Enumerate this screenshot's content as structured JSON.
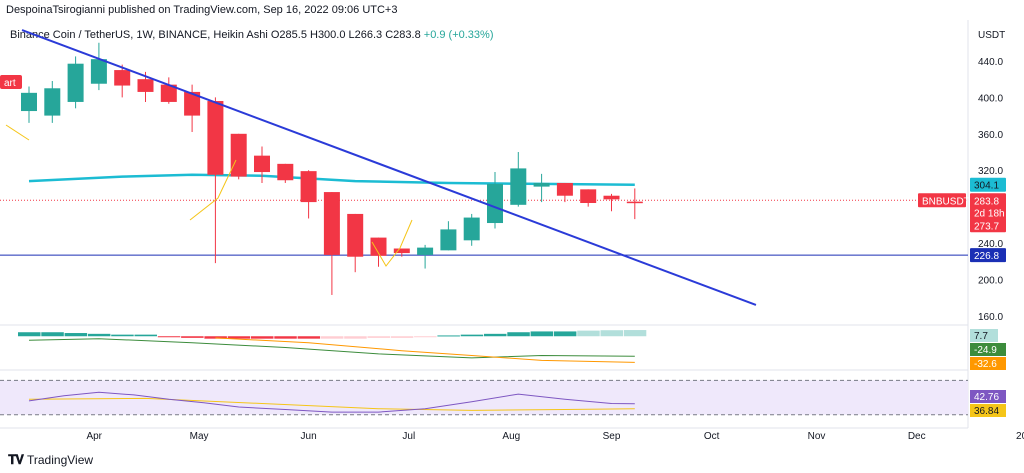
{
  "header": {
    "published_line": "DespoinaTsirogianni published on TradingView.com, Sep 16, 2022 09:06 UTC+3"
  },
  "footer": {
    "brand": "TradingView",
    "logo_icon": "tradingview-logo-icon"
  },
  "colors": {
    "up": "#26a69a",
    "down": "#f23645",
    "trendline": "#2b3bd8",
    "ma": "#1cbcd3",
    "support": "#1a2fb5",
    "macd_line": "#3c8c3c",
    "signal_line": "#ff9800",
    "rsi": "#7e57c2",
    "rsi_ma": "#f5c518",
    "rsi_band": "#efe8fb"
  },
  "chart_data": [
    {
      "type": "candlestick",
      "symbol_info": {
        "name": "Binance Coin / TetherUS, 1W, BINANCE, Heikin Ashi",
        "open": "O285.5",
        "high": "H300.0",
        "low": "L266.3",
        "close": "C283.8",
        "change": "+0.9 (+0.33%)"
      },
      "y_unit": "USDT",
      "ylim": [
        150,
        485
      ],
      "y_ticks": [
        "440.0",
        "400.0",
        "360.0",
        "320.0",
        "240.0",
        "200.0",
        "160.0"
      ],
      "y_tick_values": [
        440,
        400,
        360,
        320,
        240,
        200,
        160
      ],
      "x_ticks": [
        "Apr",
        "May",
        "Jun",
        "Jul",
        "Aug",
        "Sep",
        "Oct",
        "Nov",
        "Dec",
        "20"
      ],
      "x_tick_weeks": [
        2.8,
        7.3,
        12.0,
        16.3,
        20.7,
        25.0,
        29.3,
        33.8,
        38.1,
        42.6
      ],
      "candles": [
        {
          "w": 0,
          "o": 385,
          "h": 412,
          "l": 372,
          "c": 405
        },
        {
          "w": 1,
          "o": 380,
          "h": 418,
          "l": 372,
          "c": 410
        },
        {
          "w": 2,
          "o": 395,
          "h": 445,
          "l": 388,
          "c": 437
        },
        {
          "w": 3,
          "o": 415,
          "h": 460,
          "l": 408,
          "c": 442
        },
        {
          "w": 4,
          "o": 430,
          "h": 436,
          "l": 400,
          "c": 413
        },
        {
          "w": 5,
          "o": 420,
          "h": 428,
          "l": 395,
          "c": 406
        },
        {
          "w": 6,
          "o": 414,
          "h": 422,
          "l": 393,
          "c": 395
        },
        {
          "w": 7,
          "o": 406,
          "h": 414,
          "l": 362,
          "c": 380
        },
        {
          "w": 8,
          "o": 396,
          "h": 400,
          "l": 218,
          "c": 315
        },
        {
          "w": 9,
          "o": 360,
          "h": 360,
          "l": 310,
          "c": 313
        },
        {
          "w": 10,
          "o": 336,
          "h": 346,
          "l": 306,
          "c": 318
        },
        {
          "w": 11,
          "o": 327,
          "h": 327,
          "l": 306,
          "c": 309
        },
        {
          "w": 12,
          "o": 319,
          "h": 320,
          "l": 267,
          "c": 285
        },
        {
          "w": 13,
          "o": 296,
          "h": 296,
          "l": 183,
          "c": 227
        },
        {
          "w": 14,
          "o": 272,
          "h": 272,
          "l": 208,
          "c": 225
        },
        {
          "w": 15,
          "o": 246,
          "h": 246,
          "l": 214,
          "c": 226
        },
        {
          "w": 16,
          "o": 234,
          "h": 234,
          "l": 225,
          "c": 229
        },
        {
          "w": 17,
          "o": 227,
          "h": 238,
          "l": 212,
          "c": 235
        },
        {
          "w": 18,
          "o": 232,
          "h": 264,
          "l": 232,
          "c": 255
        },
        {
          "w": 19,
          "o": 243,
          "h": 272,
          "l": 237,
          "c": 268
        },
        {
          "w": 20,
          "o": 262,
          "h": 318,
          "l": 256,
          "c": 305
        },
        {
          "w": 21,
          "o": 282,
          "h": 340,
          "l": 280,
          "c": 322
        },
        {
          "w": 22,
          "o": 302,
          "h": 316,
          "l": 285,
          "c": 306
        },
        {
          "w": 23,
          "o": 306,
          "h": 306,
          "l": 285,
          "c": 292
        },
        {
          "w": 24,
          "o": 299,
          "h": 299,
          "l": 280,
          "c": 284
        },
        {
          "w": 25,
          "o": 292,
          "h": 294,
          "l": 275,
          "c": 288
        },
        {
          "w": 26,
          "o": 285.5,
          "h": 300,
          "l": 266.3,
          "c": 283.8
        }
      ],
      "moving_average": [
        {
          "w": 0,
          "v": 308
        },
        {
          "w": 4,
          "v": 313
        },
        {
          "w": 7,
          "v": 315
        },
        {
          "w": 10,
          "v": 314
        },
        {
          "w": 14,
          "v": 308
        },
        {
          "w": 18,
          "v": 306
        },
        {
          "w": 22,
          "v": 305
        },
        {
          "w": 26,
          "v": 304.1
        }
      ],
      "trendline": [
        {
          "w": -0.3,
          "v": 474
        },
        {
          "w": 31.2,
          "v": 172
        }
      ],
      "support_level": 226.8,
      "price_tags": [
        {
          "label": "304.1",
          "value": 304.1,
          "style": "ma"
        },
        {
          "label": "BNBUSDT",
          "value": 287,
          "style": "symbol"
        },
        {
          "label": "283.8",
          "value": 287,
          "style": "price"
        },
        {
          "label": "2d 18h",
          "value": 273.5,
          "style": "countdown"
        },
        {
          "label": "273.7",
          "value": 259.5,
          "style": "price"
        },
        {
          "label": "226.8",
          "value": 226.8,
          "style": "support"
        }
      ],
      "cut_label": "art"
    },
    {
      "type": "bar",
      "name": "MACD histogram",
      "tag_value": "7.7",
      "histogram": [
        5,
        5,
        4,
        3,
        2,
        2,
        -1,
        -2,
        -3,
        -3,
        -3,
        -3,
        -3,
        -3,
        -3,
        -2,
        -2,
        -1,
        1,
        2,
        3,
        5,
        6,
        6,
        7,
        7.5,
        7.7
      ],
      "macd_line": [
        {
          "w": 0,
          "v": -5
        },
        {
          "w": 3,
          "v": -3
        },
        {
          "w": 7,
          "v": -8
        },
        {
          "w": 11,
          "v": -14
        },
        {
          "w": 15,
          "v": -22
        },
        {
          "w": 19,
          "v": -27
        },
        {
          "w": 22,
          "v": -24
        },
        {
          "w": 26,
          "v": -24.9
        }
      ],
      "signal_line": [
        {
          "w": 8,
          "v": -2
        },
        {
          "w": 12,
          "v": -8
        },
        {
          "w": 16,
          "v": -18
        },
        {
          "w": 19,
          "v": -24
        },
        {
          "w": 22,
          "v": -30
        },
        {
          "w": 26,
          "v": -32.6
        }
      ],
      "line_tags": [
        {
          "label": "-24.9",
          "style": "macd_line"
        },
        {
          "label": "-32.6",
          "style": "signal_line"
        }
      ]
    },
    {
      "type": "line",
      "name": "RSI",
      "band": [
        30,
        70
      ],
      "rsi": [
        {
          "w": 0,
          "v": 46
        },
        {
          "w": 1.5,
          "v": 52
        },
        {
          "w": 3,
          "v": 56
        },
        {
          "w": 4.5,
          "v": 53
        },
        {
          "w": 6,
          "v": 48
        },
        {
          "w": 7.5,
          "v": 44
        },
        {
          "w": 9,
          "v": 39
        },
        {
          "w": 11,
          "v": 36
        },
        {
          "w": 13,
          "v": 33
        },
        {
          "w": 15,
          "v": 33
        },
        {
          "w": 17,
          "v": 37
        },
        {
          "w": 19,
          "v": 45
        },
        {
          "w": 21,
          "v": 54
        },
        {
          "w": 23,
          "v": 48
        },
        {
          "w": 25,
          "v": 43
        },
        {
          "w": 26,
          "v": 42.76
        }
      ],
      "rsi_ma": [
        {
          "w": 0,
          "v": 48
        },
        {
          "w": 5,
          "v": 49
        },
        {
          "w": 10,
          "v": 43
        },
        {
          "w": 15,
          "v": 37
        },
        {
          "w": 19,
          "v": 35
        },
        {
          "w": 23,
          "v": 36
        },
        {
          "w": 26,
          "v": 36.84
        }
      ],
      "tags": [
        {
          "label": "42.76",
          "style": "rsi"
        },
        {
          "label": "36.84",
          "style": "rsi_ma"
        }
      ]
    }
  ]
}
